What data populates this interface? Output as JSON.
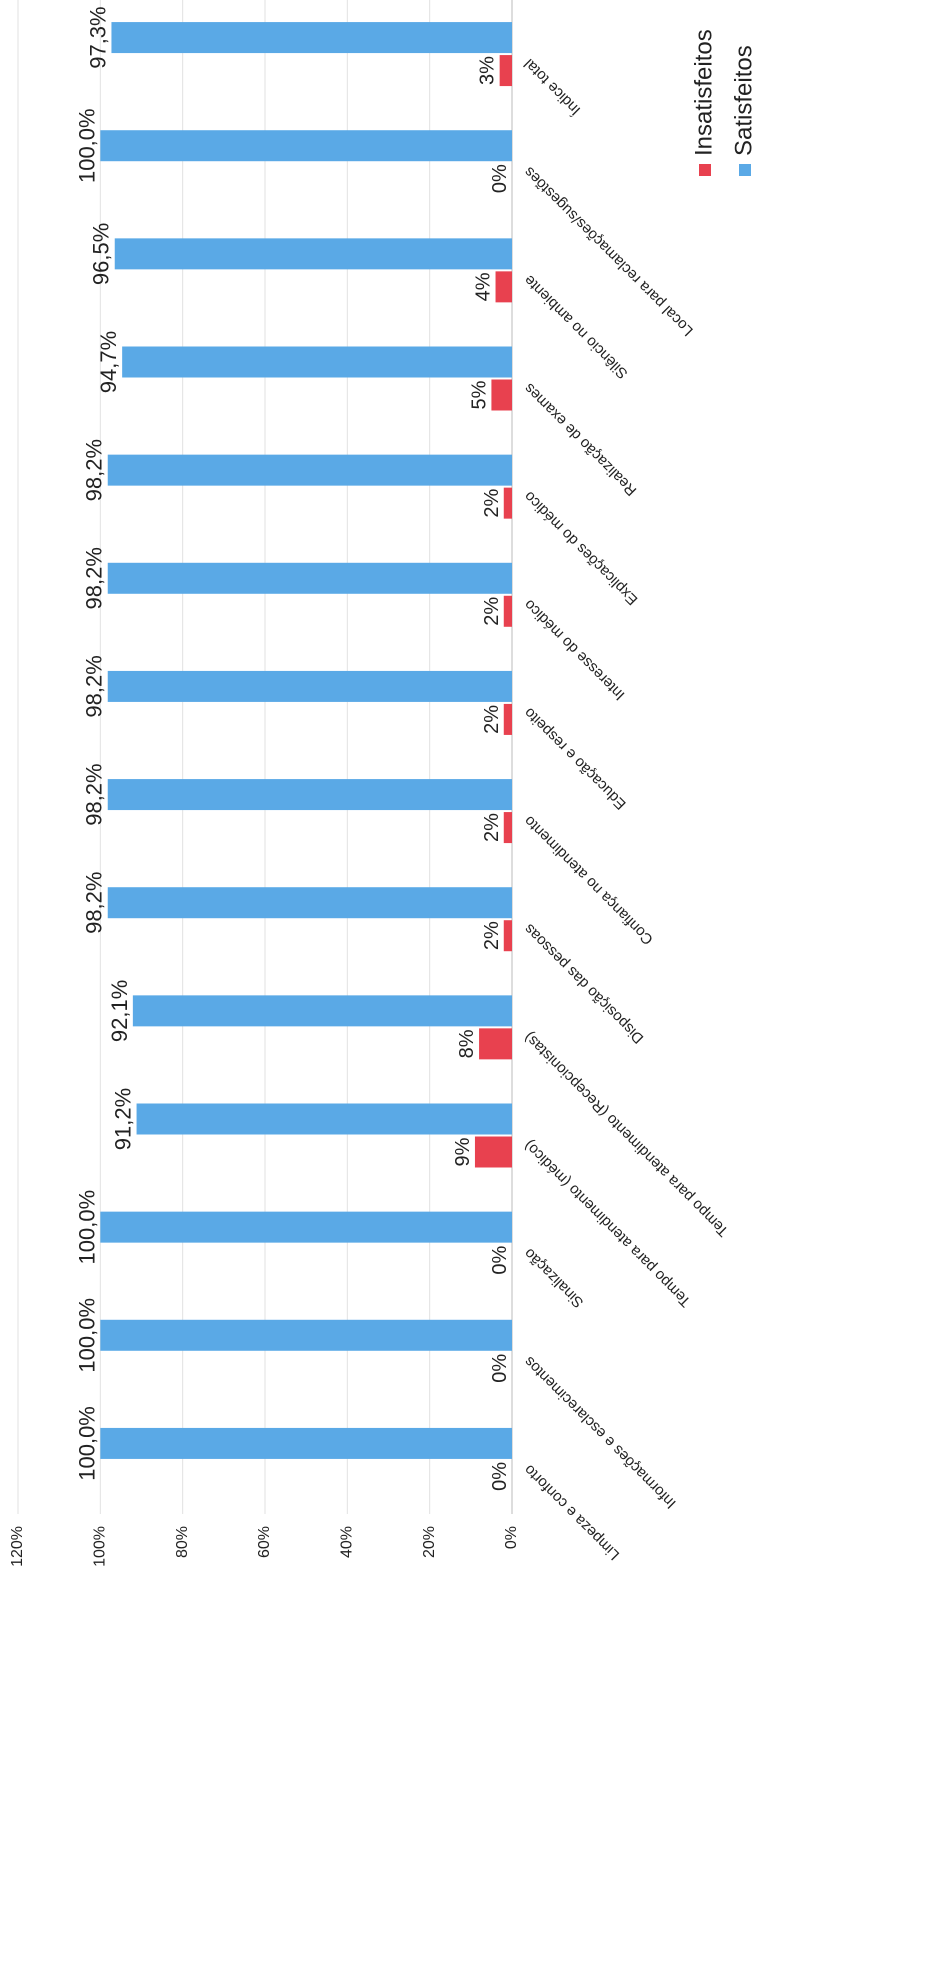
{
  "chart_data": {
    "type": "bar",
    "categories": [
      "Limpeza e conforto",
      "Informações e esclarecimentos",
      "Sinalização",
      "Tempo para atendimento (médico)",
      "Tempo para atendimento (Recepcionistas)",
      "Disposição das pessoas",
      "Confiança no atendimento",
      "Educação e respeito",
      "Interesse do médico",
      "Explicações do médico",
      "Realização de exames",
      "Silêncio no ambiente",
      "Local para reclamações/sugestões",
      "Índice total"
    ],
    "series": [
      {
        "name": "Insatisfeitos",
        "color": "#e8414f",
        "values": [
          0,
          0,
          0,
          9,
          8,
          2,
          2,
          2,
          2,
          2,
          5,
          4,
          0,
          3
        ],
        "value_labels": [
          "0%",
          "0%",
          "0%",
          "9%",
          "8%",
          "2%",
          "2%",
          "2%",
          "2%",
          "2%",
          "5%",
          "4%",
          "0%",
          "3%"
        ]
      },
      {
        "name": "Satisfeitos",
        "color": "#5aa9e6",
        "values": [
          100,
          100,
          100,
          91.2,
          92.1,
          98.2,
          98.2,
          98.2,
          98.2,
          98.2,
          94.7,
          96.5,
          100,
          97.3
        ],
        "value_labels": [
          "100,0%",
          "100,0%",
          "100,0%",
          "91,2%",
          "92,1%",
          "98,2%",
          "98,2%",
          "98,2%",
          "98,2%",
          "98,2%",
          "94,7%",
          "96,5%",
          "100,0%",
          "97,3%"
        ]
      }
    ],
    "ylim": [
      0,
      120
    ],
    "yticks": [
      {
        "value": 0,
        "label": "0%"
      },
      {
        "value": 20,
        "label": "20%"
      },
      {
        "value": 40,
        "label": "40%"
      },
      {
        "value": 60,
        "label": "60%"
      },
      {
        "value": 80,
        "label": "80%"
      },
      {
        "value": 100,
        "label": "100%"
      },
      {
        "value": 120,
        "label": "120%"
      }
    ],
    "grid": true,
    "legend": "bottom-right",
    "orientation": "rotated-90-counterclockwise"
  }
}
